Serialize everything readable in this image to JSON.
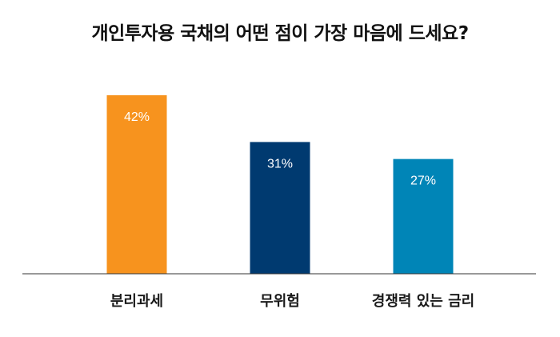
{
  "chart_data": {
    "type": "bar",
    "title": "개인투자용 국채의 어떤 점이 가장 마음에 드세요?",
    "categories": [
      "분리과세",
      "무위험",
      "경쟁력 있는 금리"
    ],
    "values": [
      42,
      31,
      27
    ],
    "value_labels": [
      "42%",
      "31%",
      "27%"
    ],
    "colors": [
      "#F7931E",
      "#003A70",
      "#0085B7"
    ],
    "xlabel": "",
    "ylabel": "",
    "ylim": [
      0,
      42
    ],
    "grid": false,
    "legend": "none"
  }
}
